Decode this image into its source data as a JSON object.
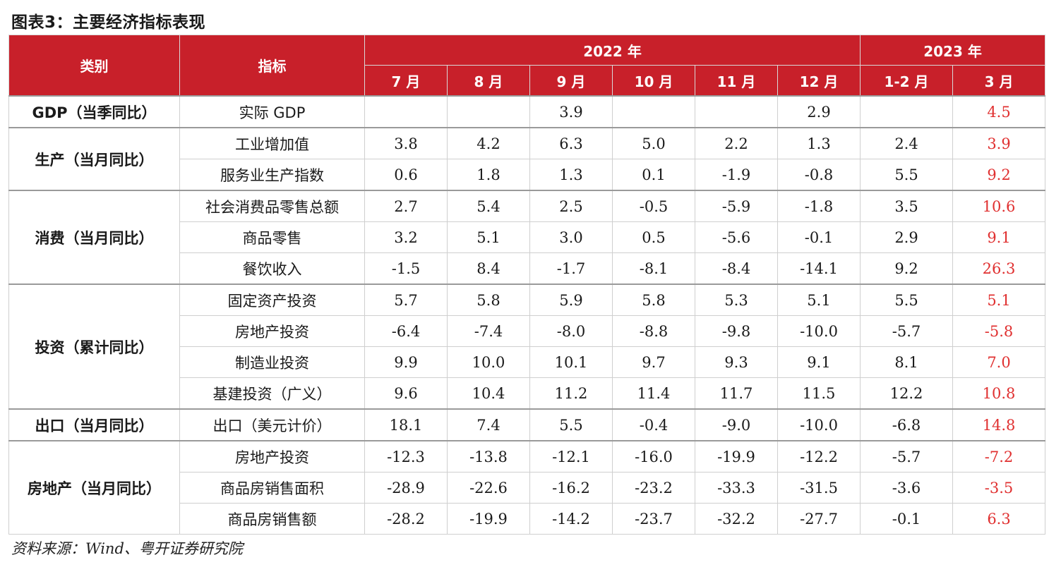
{
  "title": "图表3：主要经济指标表现",
  "header": {
    "category": "类别",
    "indicator": "指标",
    "year_2022": "2022 年",
    "year_2023": "2023 年",
    "months": [
      "7 月",
      "8 月",
      "9 月",
      "10 月",
      "11 月",
      "12 月",
      "1-2 月",
      "3 月"
    ]
  },
  "groups": [
    {
      "category": "GDP（当季同比）",
      "rows": [
        {
          "indicator": "实际 GDP",
          "values": [
            "",
            "",
            "3.9",
            "",
            "",
            "2.9",
            "",
            "4.5"
          ]
        }
      ]
    },
    {
      "category": "生产（当月同比）",
      "rows": [
        {
          "indicator": "工业增加值",
          "values": [
            "3.8",
            "4.2",
            "6.3",
            "5.0",
            "2.2",
            "1.3",
            "2.4",
            "3.9"
          ]
        },
        {
          "indicator": "服务业生产指数",
          "values": [
            "0.6",
            "1.8",
            "1.3",
            "0.1",
            "-1.9",
            "-0.8",
            "5.5",
            "9.2"
          ]
        }
      ]
    },
    {
      "category": "消费（当月同比）",
      "rows": [
        {
          "indicator": "社会消费品零售总额",
          "values": [
            "2.7",
            "5.4",
            "2.5",
            "-0.5",
            "-5.9",
            "-1.8",
            "3.5",
            "10.6"
          ]
        },
        {
          "indicator": "商品零售",
          "values": [
            "3.2",
            "5.1",
            "3.0",
            "0.5",
            "-5.6",
            "-0.1",
            "2.9",
            "9.1"
          ]
        },
        {
          "indicator": "餐饮收入",
          "values": [
            "-1.5",
            "8.4",
            "-1.7",
            "-8.1",
            "-8.4",
            "-14.1",
            "9.2",
            "26.3"
          ]
        }
      ]
    },
    {
      "category": "投资（累计同比）",
      "rows": [
        {
          "indicator": "固定资产投资",
          "values": [
            "5.7",
            "5.8",
            "5.9",
            "5.8",
            "5.3",
            "5.1",
            "5.5",
            "5.1"
          ]
        },
        {
          "indicator": "房地产投资",
          "values": [
            "-6.4",
            "-7.4",
            "-8.0",
            "-8.8",
            "-9.8",
            "-10.0",
            "-5.7",
            "-5.8"
          ]
        },
        {
          "indicator": "制造业投资",
          "values": [
            "9.9",
            "10.0",
            "10.1",
            "9.7",
            "9.3",
            "9.1",
            "8.1",
            "7.0"
          ]
        },
        {
          "indicator": "基建投资（广义）",
          "values": [
            "9.6",
            "10.4",
            "11.2",
            "11.4",
            "11.7",
            "11.5",
            "12.2",
            "10.8"
          ]
        }
      ]
    },
    {
      "category": "出口（当月同比）",
      "rows": [
        {
          "indicator": "出口（美元计价）",
          "values": [
            "18.1",
            "7.4",
            "5.5",
            "-0.4",
            "-9.0",
            "-10.0",
            "-6.8",
            "14.8"
          ]
        }
      ]
    },
    {
      "category": "房地产（当月同比）",
      "rows": [
        {
          "indicator": "房地产投资",
          "values": [
            "-12.3",
            "-13.8",
            "-12.1",
            "-16.0",
            "-19.9",
            "-12.2",
            "-5.7",
            "-7.2"
          ]
        },
        {
          "indicator": "商品房销售面积",
          "values": [
            "-28.9",
            "-22.6",
            "-16.2",
            "-23.2",
            "-33.3",
            "-31.5",
            "-3.6",
            "-3.5"
          ]
        },
        {
          "indicator": "商品房销售额",
          "values": [
            "-28.2",
            "-19.9",
            "-14.2",
            "-23.7",
            "-32.2",
            "-27.7",
            "-0.1",
            "6.3"
          ]
        }
      ]
    }
  ],
  "source": "资料来源：Wind、粤开证券研究院",
  "colors": {
    "header_bg": "#c8202a",
    "highlight_text": "#e03030"
  }
}
